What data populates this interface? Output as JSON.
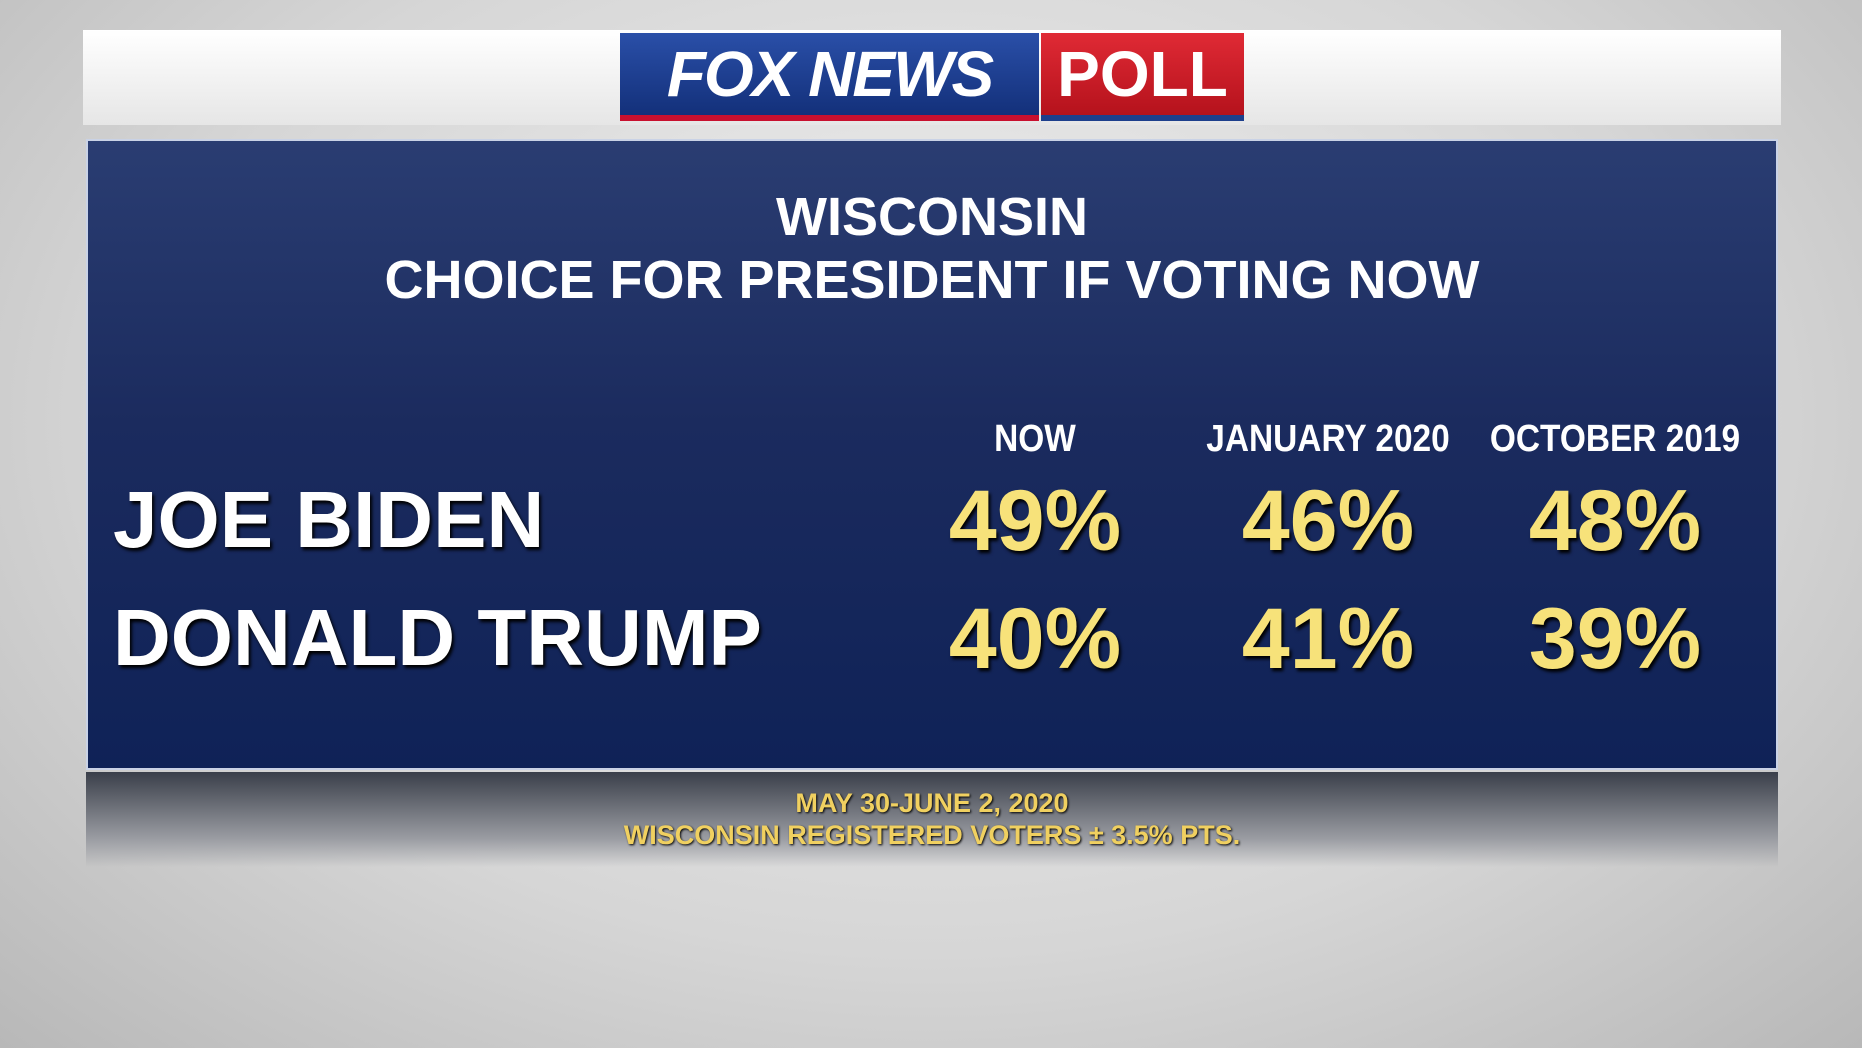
{
  "header": {
    "brand": "FOX NEWS",
    "badge": "POLL"
  },
  "title": [
    "WISCONSIN",
    "CHOICE FOR PRESIDENT IF VOTING NOW"
  ],
  "table": {
    "columns": [
      "NOW",
      "JANUARY 2020",
      "OCTOBER 2019"
    ],
    "rows": [
      {
        "name": "JOE BIDEN",
        "values": [
          "49%",
          "46%",
          "48%"
        ]
      },
      {
        "name": "DONALD TRUMP",
        "values": [
          "40%",
          "41%",
          "39%"
        ]
      }
    ]
  },
  "footer": [
    "MAY 30-JUNE 2, 2020",
    "WISCONSIN REGISTERED VOTERS ± 3.5% PTS."
  ]
}
